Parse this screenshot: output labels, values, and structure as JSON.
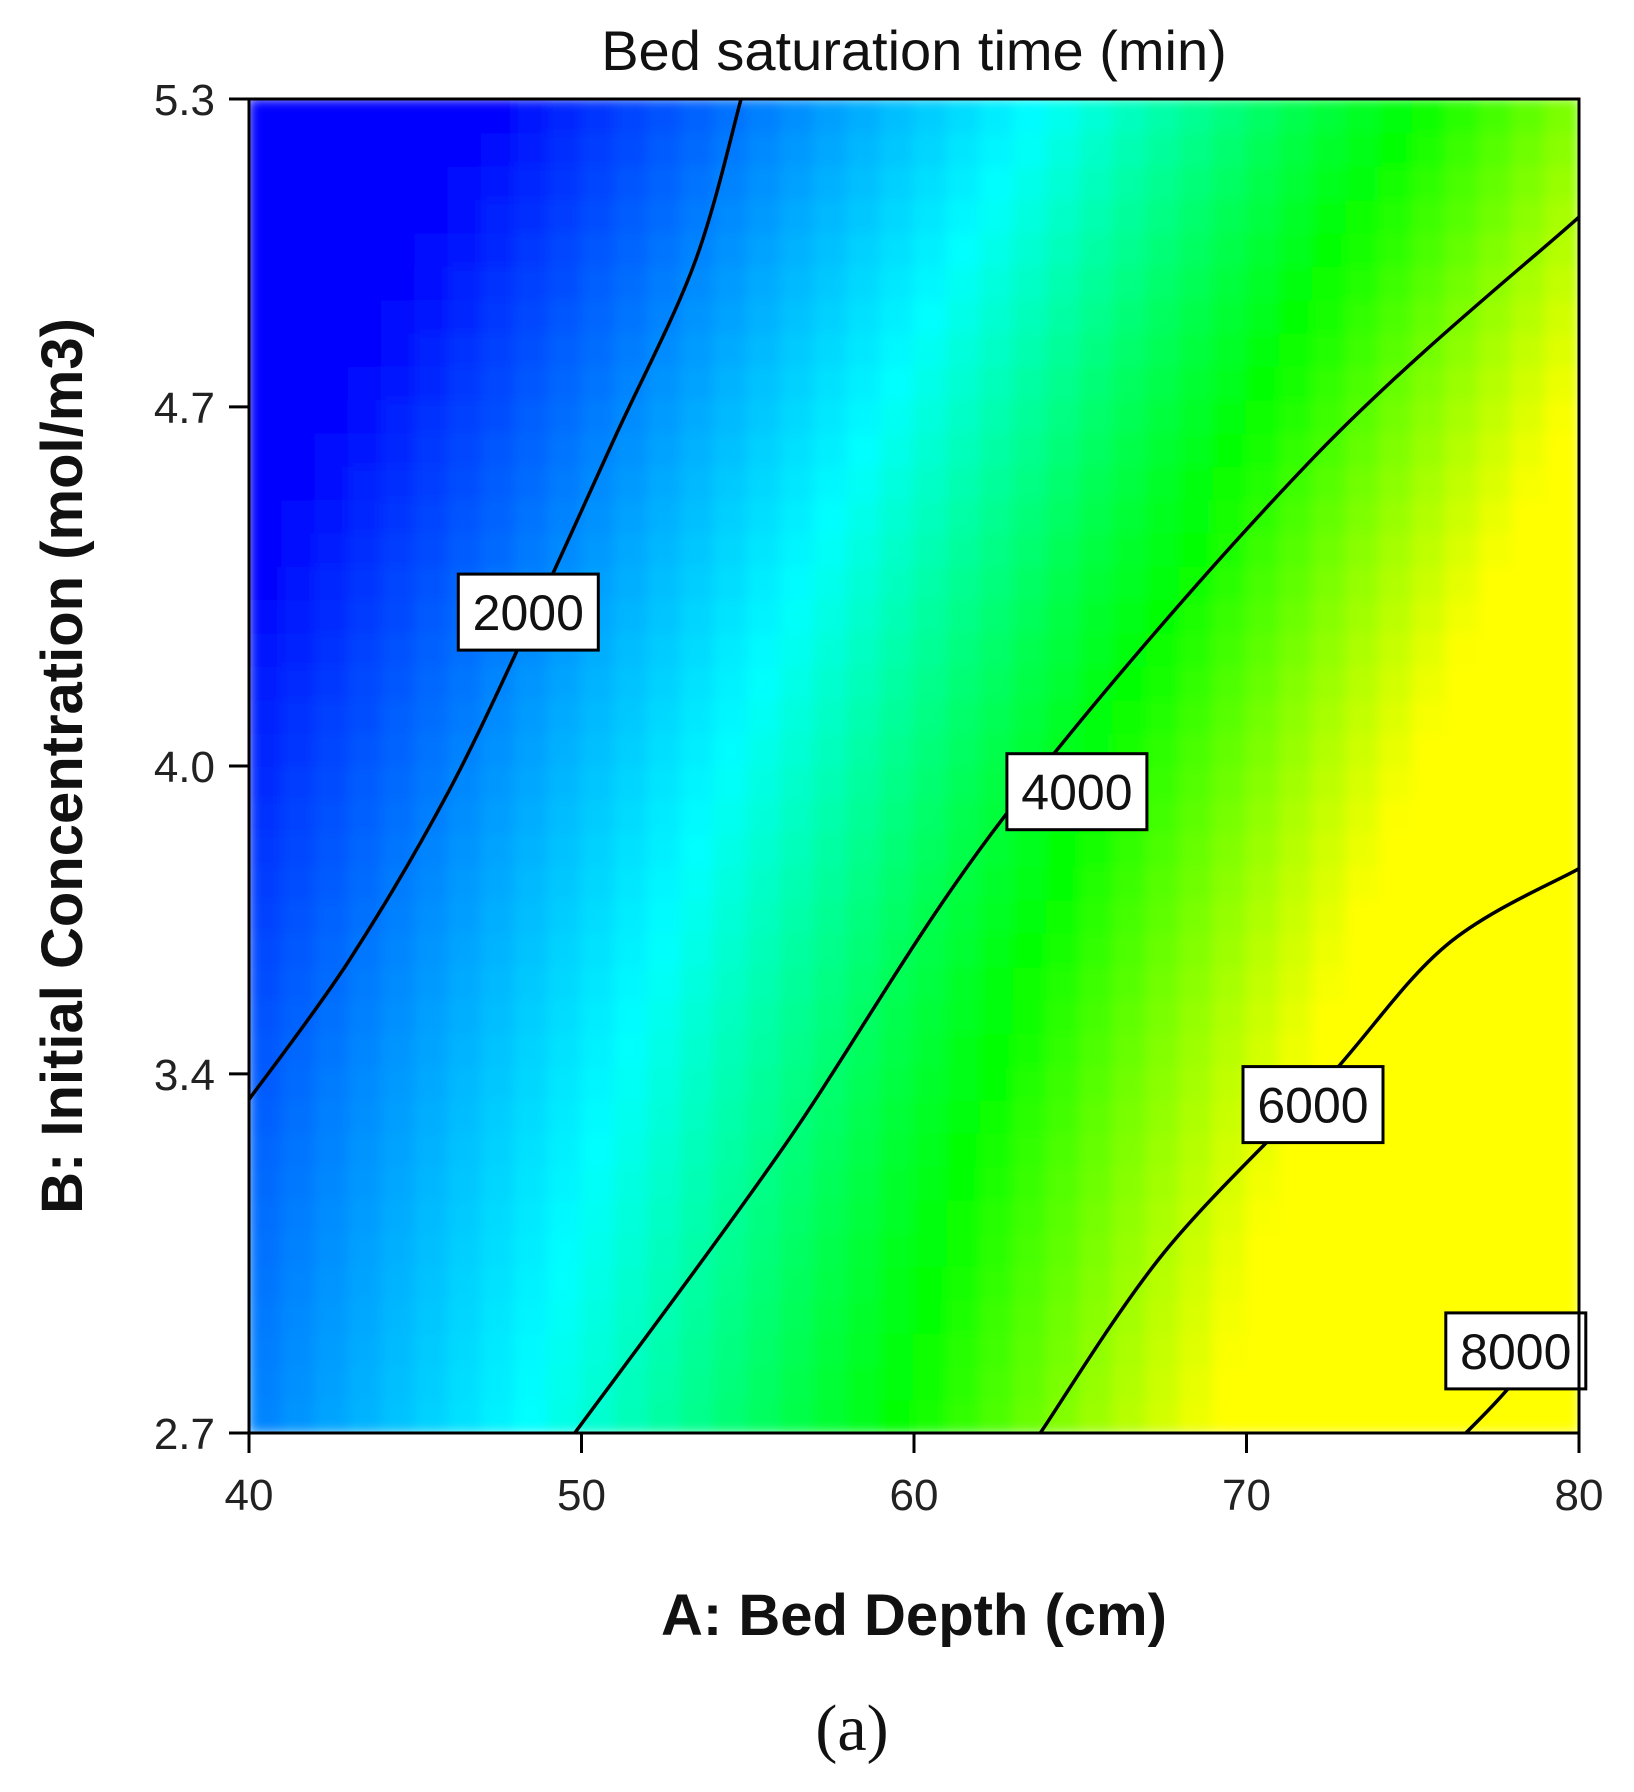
{
  "chart_data": {
    "type": "heatmap",
    "subtype": "contour",
    "title": "Bed saturation time (min)",
    "xlabel": "A: Bed Depth (cm)",
    "ylabel": "B: Initial Concentration (mol/m3)",
    "xlim": [
      40,
      80
    ],
    "ylim": [
      2.7,
      5.3
    ],
    "xticks": [
      40,
      50,
      60,
      70,
      80
    ],
    "yticks": [
      2.7,
      3.4,
      4.0,
      4.7,
      5.3
    ],
    "xtick_labels": [
      "40",
      "50",
      "60",
      "70",
      "80"
    ],
    "ytick_labels": [
      "2.7",
      "3.4",
      "4.0",
      "4.7",
      "5.3"
    ],
    "colormap": [
      "#0000ff",
      "#00ffff",
      "#00ff00",
      "#ffff00"
    ],
    "grid": false,
    "contours": [
      {
        "level": 2000,
        "label": "2000",
        "points": [
          [
            40,
            3.35
          ],
          [
            43,
            3.62
          ],
          [
            46,
            3.95
          ],
          [
            48.6,
            4.3
          ],
          [
            51,
            4.64
          ],
          [
            53.4,
            4.98
          ],
          [
            54.8,
            5.3
          ]
        ],
        "label_at": [
          48.4,
          4.3
        ]
      },
      {
        "level": 4000,
        "label": "4000",
        "points": [
          [
            49.8,
            2.7
          ],
          [
            56,
            3.25
          ],
          [
            62.7,
            3.9
          ],
          [
            72,
            4.6
          ],
          [
            80,
            5.07
          ]
        ],
        "label_at": [
          64.9,
          3.95
        ]
      },
      {
        "level": 6000,
        "label": "6000",
        "points": [
          [
            63.8,
            2.7
          ],
          [
            67.5,
            3.05
          ],
          [
            72.3,
            3.38
          ],
          [
            76,
            3.65
          ],
          [
            80,
            3.8
          ]
        ],
        "label_at": [
          72,
          3.34
        ]
      },
      {
        "level": 8000,
        "label": "8000",
        "points": [
          [
            76.6,
            2.7
          ],
          [
            77.5,
            2.76
          ],
          [
            78.6,
            2.84
          ]
        ],
        "label_at": [
          78.1,
          2.86
        ]
      }
    ],
    "panel_label": "(a)"
  }
}
